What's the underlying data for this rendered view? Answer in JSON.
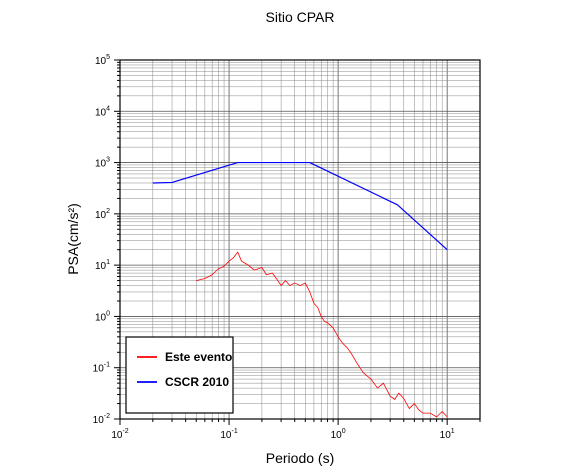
{
  "chart_data": {
    "type": "line",
    "title": "Sitio CPAR",
    "xlabel": "Periodo (s)",
    "ylabel": "PSA(cm/s²)",
    "x_scale": "log",
    "y_scale": "log",
    "xlim": [
      0.01,
      20
    ],
    "ylim": [
      0.01,
      100000
    ],
    "grid": true,
    "legend_position": "bottom-left",
    "x_ticks": [
      {
        "base": "10",
        "exp": "-2",
        "value": 0.01
      },
      {
        "base": "10",
        "exp": "-1",
        "value": 0.1
      },
      {
        "base": "10",
        "exp": "0",
        "value": 1
      },
      {
        "base": "10",
        "exp": "1",
        "value": 10
      }
    ],
    "y_ticks": [
      {
        "base": "10",
        "exp": "-2",
        "value": 0.01
      },
      {
        "base": "10",
        "exp": "-1",
        "value": 0.1
      },
      {
        "base": "10",
        "exp": "0",
        "value": 1
      },
      {
        "base": "10",
        "exp": "1",
        "value": 10
      },
      {
        "base": "10",
        "exp": "2",
        "value": 100
      },
      {
        "base": "10",
        "exp": "3",
        "value": 1000
      },
      {
        "base": "10",
        "exp": "4",
        "value": 10000
      },
      {
        "base": "10",
        "exp": "5",
        "value": 100000
      }
    ],
    "series": [
      {
        "name": "Este evento",
        "color": "#ff0000",
        "x": [
          0.05,
          0.06,
          0.07,
          0.08,
          0.09,
          0.1,
          0.11,
          0.12,
          0.13,
          0.15,
          0.17,
          0.2,
          0.22,
          0.25,
          0.28,
          0.3,
          0.33,
          0.36,
          0.4,
          0.45,
          0.5,
          0.55,
          0.6,
          0.65,
          0.7,
          0.75,
          0.8,
          0.9,
          1.0,
          1.1,
          1.2,
          1.3,
          1.5,
          1.7,
          2.0,
          2.3,
          2.6,
          3.0,
          3.3,
          3.6,
          4.0,
          4.5,
          5.0,
          5.5,
          6.0,
          7.0,
          8.0,
          9.0,
          10.0
        ],
        "y": [
          5.0,
          5.5,
          6.5,
          8.5,
          9.5,
          12.0,
          14.0,
          18.0,
          12.0,
          10.0,
          8.0,
          9.0,
          6.5,
          7.0,
          5.0,
          4.0,
          5.0,
          4.0,
          4.5,
          4.0,
          4.5,
          3.0,
          1.8,
          1.5,
          1.0,
          0.8,
          0.75,
          0.6,
          0.4,
          0.3,
          0.25,
          0.2,
          0.12,
          0.08,
          0.06,
          0.04,
          0.05,
          0.028,
          0.024,
          0.032,
          0.025,
          0.016,
          0.02,
          0.015,
          0.013,
          0.013,
          0.011,
          0.014,
          0.011
        ]
      },
      {
        "name": "CSCR 2010",
        "color": "#0000ff",
        "x": [
          0.02,
          0.03,
          0.12,
          0.55,
          3.5,
          10.0
        ],
        "y": [
          400,
          410,
          1000,
          1000,
          150,
          20
        ]
      }
    ]
  }
}
